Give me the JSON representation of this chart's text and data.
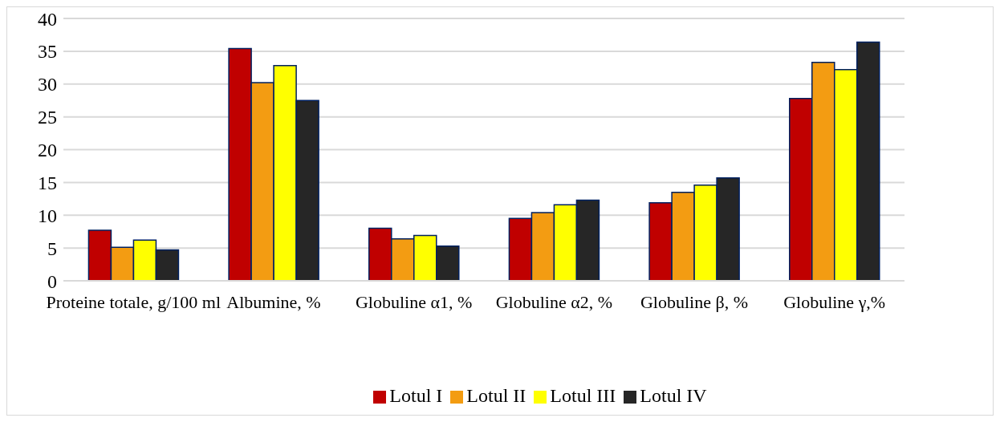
{
  "chart_data": {
    "type": "bar",
    "categories": [
      "Proteine totale, g/100 ml",
      "Albumine, %",
      "Globuline α1, %",
      "Globuline α2, %",
      "Globuline β, %",
      "Globuline γ,%"
    ],
    "series": [
      {
        "name": "Lotul I",
        "color": "#c00000",
        "values": [
          7.7,
          35.4,
          8.0,
          9.5,
          11.9,
          27.8
        ]
      },
      {
        "name": "Lotul II",
        "color": "#f39c12",
        "values": [
          5.1,
          30.2,
          6.4,
          10.4,
          13.5,
          33.3
        ]
      },
      {
        "name": "Lotul III",
        "color": "#ffff00",
        "values": [
          6.2,
          32.8,
          6.9,
          11.6,
          14.6,
          32.2
        ]
      },
      {
        "name": "Lotul IV",
        "color": "#262626",
        "values": [
          4.7,
          27.5,
          5.3,
          12.3,
          15.7,
          36.4
        ]
      }
    ],
    "ylim": [
      0,
      40
    ],
    "yticks": [
      0,
      5,
      10,
      15,
      20,
      25,
      30,
      35,
      40
    ],
    "grid": "y",
    "legend": "bottom"
  }
}
